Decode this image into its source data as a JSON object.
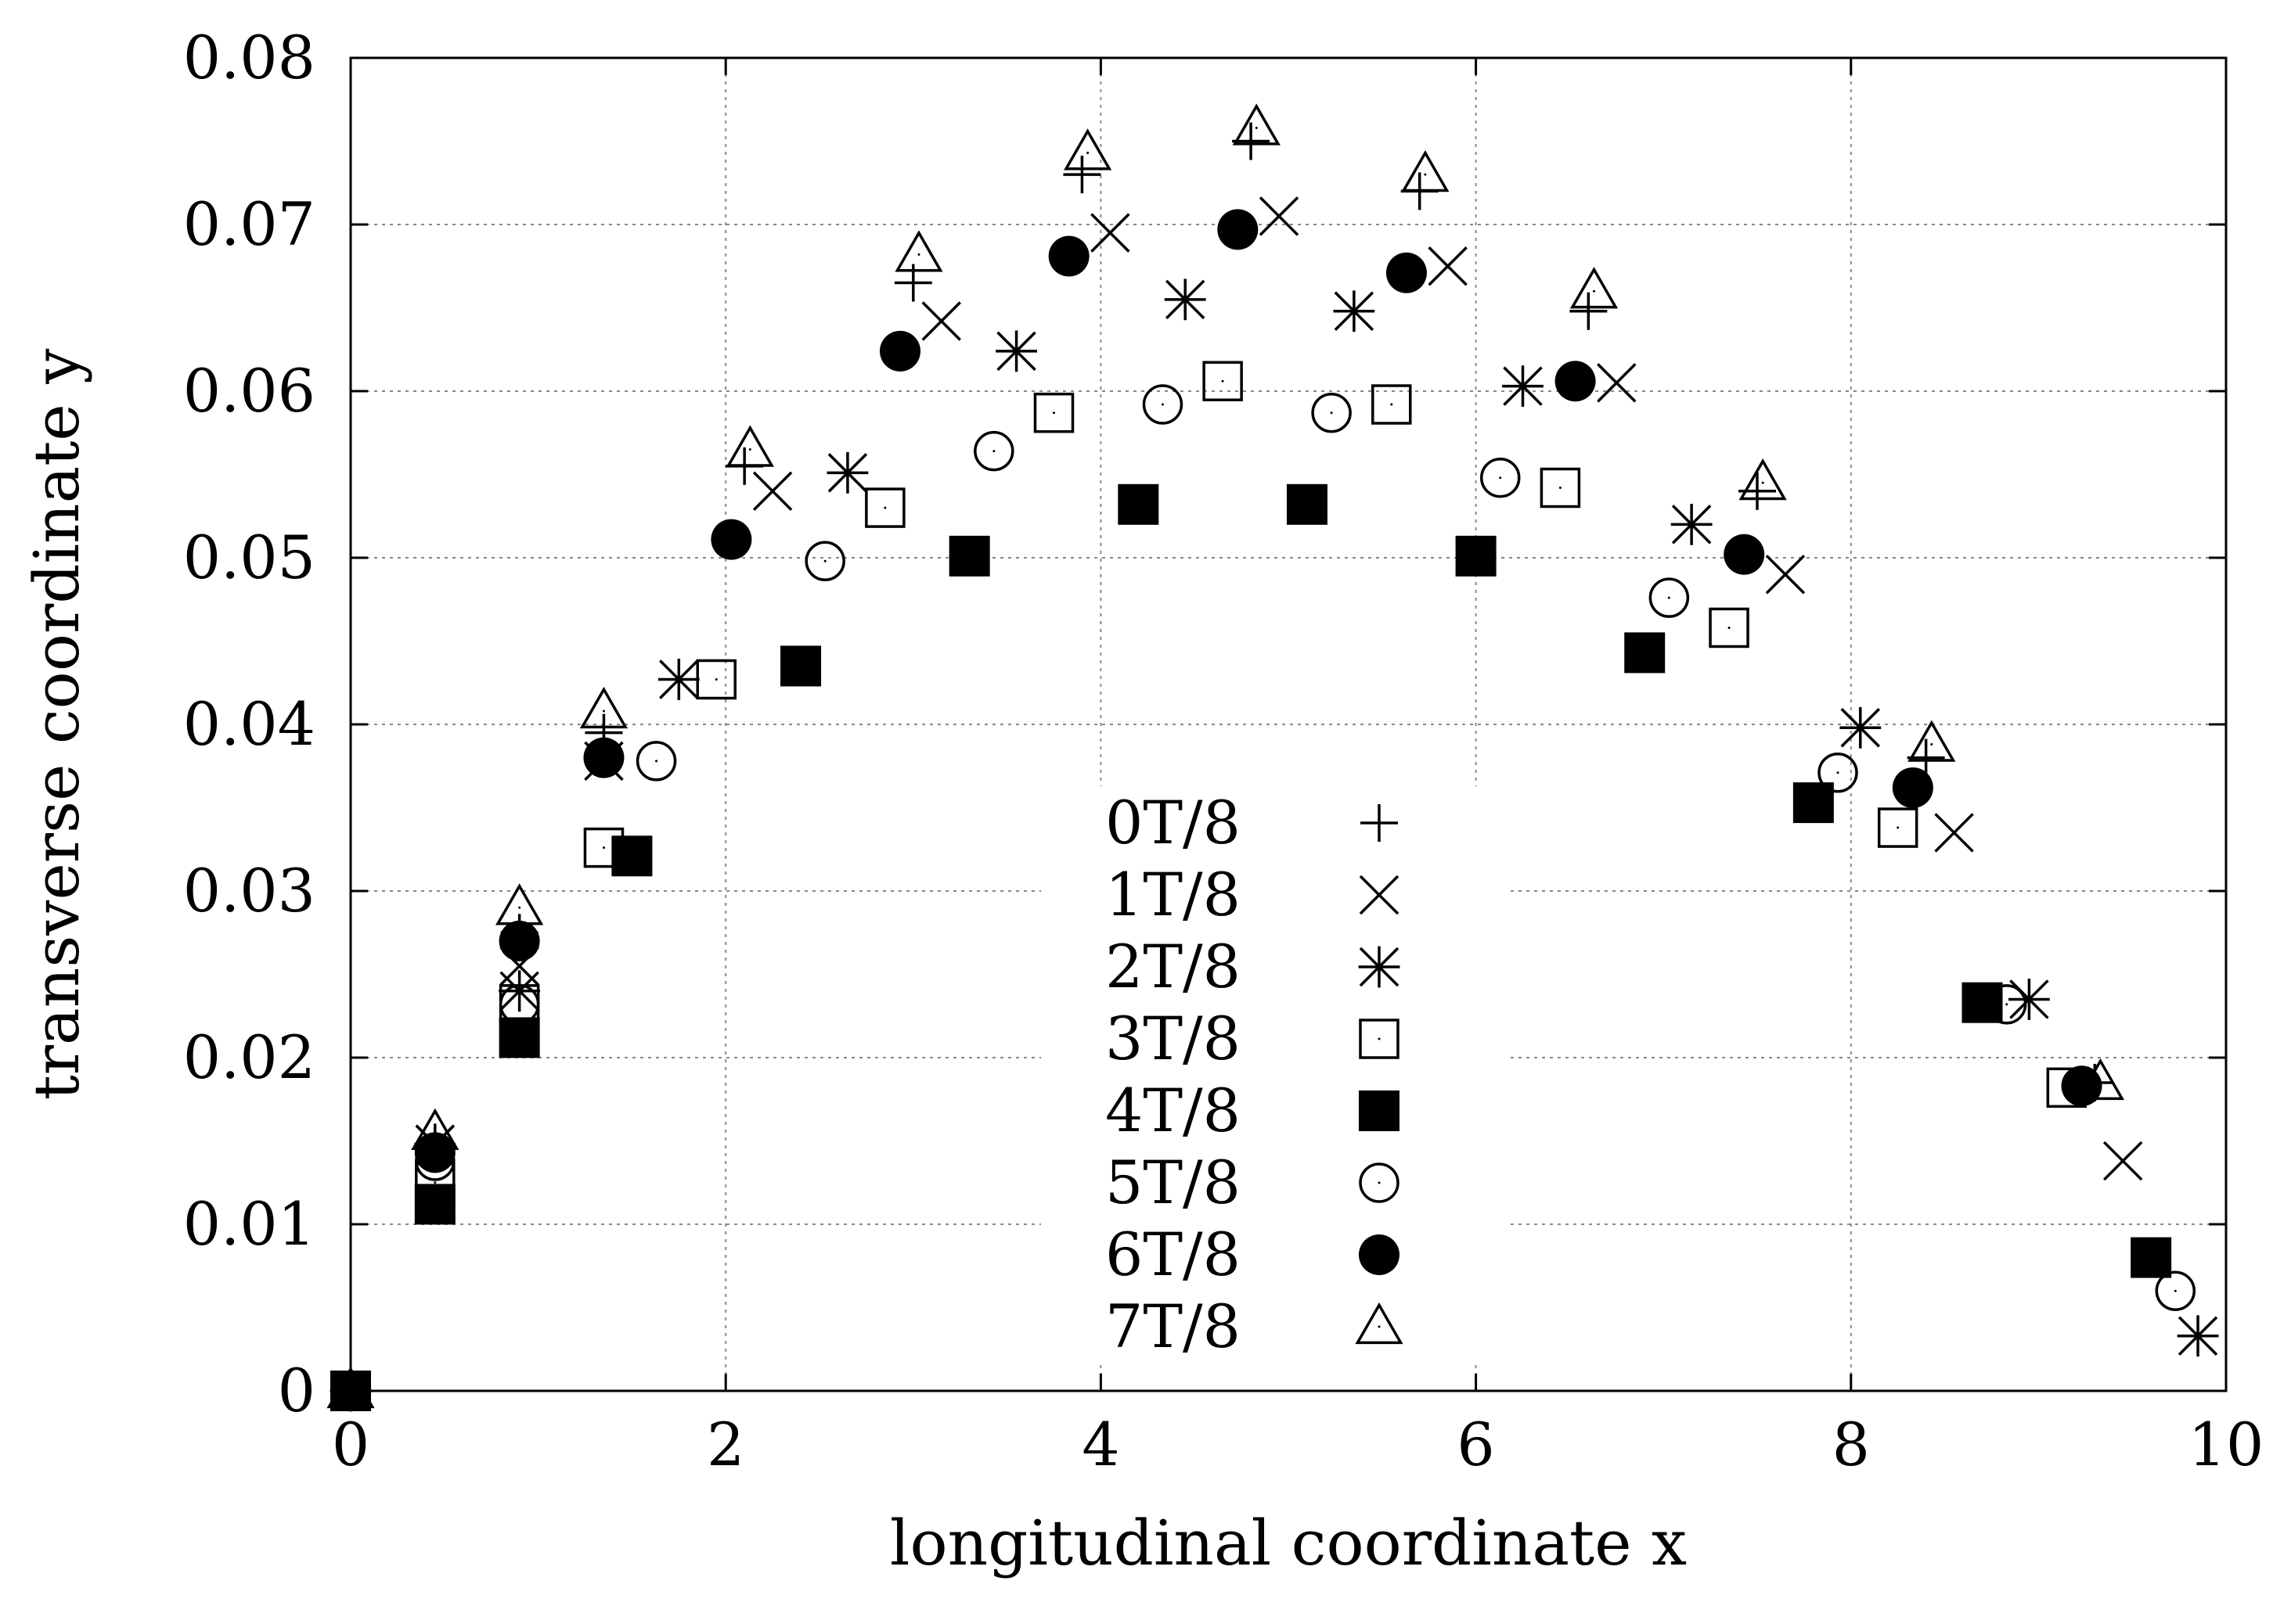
{
  "chart_data": {
    "type": "scatter",
    "title": "",
    "xlabel": "longitudinal coordinate x",
    "ylabel": "transverse coordinate y",
    "xlim": [
      0,
      10
    ],
    "ylim": [
      0,
      0.08
    ],
    "grid": true,
    "legend_position": "center",
    "x_ticks": [
      {
        "value": 0,
        "label": "0"
      },
      {
        "value": 2,
        "label": "2"
      },
      {
        "value": 4,
        "label": "4"
      },
      {
        "value": 6,
        "label": "6"
      },
      {
        "value": 8,
        "label": "8"
      },
      {
        "value": 10,
        "label": "10"
      }
    ],
    "y_ticks": [
      {
        "value": 0,
        "label": "0"
      },
      {
        "value": 0.01,
        "label": "0.01"
      },
      {
        "value": 0.02,
        "label": "0.02"
      },
      {
        "value": 0.03,
        "label": "0.03"
      },
      {
        "value": 0.04,
        "label": "0.04"
      },
      {
        "value": 0.05,
        "label": "0.05"
      },
      {
        "value": 0.06,
        "label": "0.06"
      },
      {
        "value": 0.07,
        "label": "0.07"
      },
      {
        "value": 0.08,
        "label": "0.08"
      }
    ],
    "series": [
      {
        "name": "0T/8",
        "marker": "plus",
        "x": [
          0,
          0.45,
          0.9,
          1.35,
          2.1,
          3.0,
          3.9,
          4.8,
          5.7,
          6.6,
          7.5,
          8.4,
          9.3
        ],
        "y": [
          0,
          0.0145,
          0.0275,
          0.0395,
          0.0555,
          0.0665,
          0.073,
          0.075,
          0.072,
          0.0648,
          0.054,
          0.038,
          0.0185
        ]
      },
      {
        "name": "1T/8",
        "marker": "cross",
        "x": [
          0,
          0.45,
          0.9,
          1.35,
          2.25,
          3.15,
          4.05,
          4.95,
          5.85,
          6.75,
          7.65,
          8.55,
          9.45
        ],
        "y": [
          0,
          0.0148,
          0.0255,
          0.0378,
          0.054,
          0.0642,
          0.0695,
          0.0705,
          0.0675,
          0.0605,
          0.049,
          0.0335,
          0.0138
        ]
      },
      {
        "name": "2T/8",
        "marker": "asterisk",
        "x": [
          0,
          0.45,
          0.9,
          1.75,
          2.65,
          3.55,
          4.45,
          5.35,
          6.25,
          7.15,
          8.05,
          8.95,
          9.85
        ],
        "y": [
          0,
          0.0148,
          0.024,
          0.0427,
          0.0551,
          0.0624,
          0.0655,
          0.0648,
          0.0603,
          0.052,
          0.0398,
          0.0235,
          0.0033
        ]
      },
      {
        "name": "3T/8",
        "marker": "square-open",
        "x": [
          0,
          0.45,
          0.9,
          1.35,
          1.95,
          2.85,
          3.75,
          4.65,
          5.55,
          6.45,
          7.35,
          8.25,
          9.15
        ],
        "y": [
          0,
          0.0125,
          0.0232,
          0.0326,
          0.0427,
          0.053,
          0.0587,
          0.0606,
          0.0592,
          0.0542,
          0.0458,
          0.0338,
          0.0182
        ]
      },
      {
        "name": "4T/8",
        "marker": "square-filled",
        "x": [
          0,
          0.45,
          0.9,
          1.5,
          2.4,
          3.3,
          4.2,
          5.1,
          6.0,
          6.9,
          7.8,
          8.7,
          9.6
        ],
        "y": [
          0,
          0.0112,
          0.0212,
          0.0321,
          0.0435,
          0.0501,
          0.0532,
          0.0532,
          0.0501,
          0.0443,
          0.0353,
          0.0233,
          0.008
        ]
      },
      {
        "name": "5T/8",
        "marker": "circle-open",
        "x": [
          0,
          0.45,
          0.9,
          1.63,
          2.53,
          3.43,
          4.33,
          5.23,
          6.13,
          7.03,
          7.93,
          8.83,
          9.73
        ],
        "y": [
          0,
          0.0138,
          0.0232,
          0.0378,
          0.0498,
          0.0564,
          0.0592,
          0.0587,
          0.0548,
          0.0476,
          0.0371,
          0.0232,
          0.006
        ]
      },
      {
        "name": "6T/8",
        "marker": "circle-filled",
        "x": [
          0,
          0.45,
          0.9,
          1.35,
          2.03,
          2.93,
          3.83,
          4.73,
          5.63,
          6.53,
          7.43,
          8.33,
          9.23
        ],
        "y": [
          0,
          0.0143,
          0.027,
          0.038,
          0.0511,
          0.0624,
          0.0681,
          0.0697,
          0.0671,
          0.0606,
          0.0502,
          0.0362,
          0.0183
        ]
      },
      {
        "name": "7T/8",
        "marker": "triangle-open",
        "x": [
          0,
          0.45,
          0.9,
          1.35,
          2.13,
          3.03,
          3.93,
          4.83,
          5.73,
          6.63,
          7.53,
          8.43,
          9.33
        ],
        "y": [
          0,
          0.0155,
          0.029,
          0.0408,
          0.0565,
          0.0682,
          0.0743,
          0.0758,
          0.073,
          0.066,
          0.0545,
          0.0388,
          0.0185
        ]
      }
    ]
  }
}
